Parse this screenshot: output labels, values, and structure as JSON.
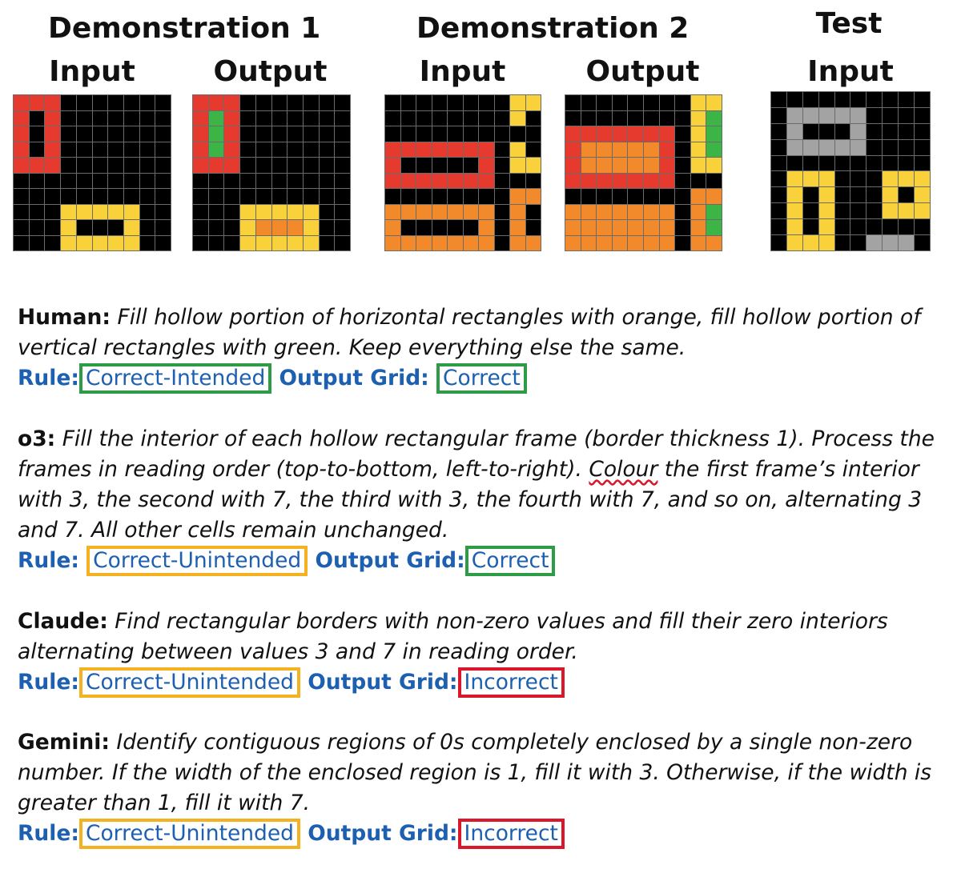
{
  "headers": {
    "demo1": "Demonstration 1",
    "demo2": "Demonstration 2",
    "test": "Test",
    "input": "Input",
    "output": "Output"
  },
  "colors": {
    "black": "#000000",
    "red": "#e63a2e",
    "yellow": "#f9d13b",
    "orange": "#f28a2b",
    "green": "#3cb446",
    "gray": "#a3a3a3",
    "gridline": "#6b6b6b",
    "label_blue": "#1d5fb0",
    "box_green": "#2e9c46",
    "box_orange": "#f4b223",
    "box_red": "#d9192b"
  },
  "grids": {
    "demo1_input": {
      "size": 10,
      "cells": [
        "RRR.......",
        "R.R.......",
        "R.R.......",
        "R.R.......",
        "RRR.......",
        "..........",
        "..........",
        "...YYYYY..",
        "...Y...Y..",
        "...YYYYY.."
      ]
    },
    "demo1_output": {
      "size": 10,
      "cells": [
        "RRR.......",
        "RGR.......",
        "RGR.......",
        "RGR.......",
        "RRR.......",
        "..........",
        "..........",
        "...YYYYY..",
        "...YOOOY..",
        "...YYYYY.."
      ]
    },
    "demo2_input": {
      "size": 10,
      "cells": [
        "........YY",
        "........Y.",
        ".......... ",
        "RRRRRRR.Y.",
        "R.....R.YY",
        "RRRRRRR...",
        "........OO",
        "OOOOOOO.O.",
        "O.....O.O.",
        "OOOOOOO.OO"
      ]
    },
    "demo2_output": {
      "size": 10,
      "cells": [
        "........YY",
        "........YG",
        "RRRRRRR.YG",
        "ROOOOOR.YG",
        "ROOOOOR.YY",
        "RRRRRRR...",
        "........OO",
        "OOOOOOO.OG",
        "OOOOOOO.OG",
        "OOOOOOO.OO"
      ]
    },
    "test_input": {
      "size": 10,
      "cells": [
        "..........",
        ".AAAAA....",
        ".A...A....",
        ".AAAAA....",
        "..........",
        ".YYY...YYY",
        ".Y.Y...Y.Y",
        ".Y.Y...YYY",
        ".Y.Y......",
        ".YYY..AAA."
      ]
    }
  },
  "entries": [
    {
      "who": "Human:",
      "desc": "Fill hollow portion of horizontal rectangles with orange, fill hollow portion of vertical rectangles with green. Keep everything else the same.",
      "rule_label": "Rule:",
      "rule_value": "Correct-Intended",
      "output_label": "Output Grid:",
      "output_value": "Correct"
    },
    {
      "who": "o3:",
      "desc_before": "Fill the interior of each hollow rectangular frame (border thickness 1). Process the frames in reading order (top-to-bottom, left-to-right).",
      "desc_spell": "Colour",
      "desc_after": "the first frame’s interior with 3, the second with 7, the third with 3, the fourth with 7, and so on, alternating 3 and 7. All other cells remain unchanged.",
      "rule_label": "Rule:",
      "rule_value": "Correct-Unintended",
      "output_label": "Output Grid:",
      "output_value": "Correct"
    },
    {
      "who": "Claude:",
      "desc": "Find rectangular borders with non-zero values and fill their zero interiors alternating between values 3 and 7 in reading order.",
      "rule_label": "Rule:",
      "rule_value": "Correct-Unintended",
      "output_label": "Output Grid:",
      "output_value": "Incorrect"
    },
    {
      "who": "Gemini:",
      "desc": "Identify contiguous regions of 0s completely enclosed by a single non-zero number. If the width of the enclosed region is 1, fill it with 3. Otherwise, if the width is greater than 1, fill it with 7.",
      "rule_label": "Rule:",
      "rule_value": "Correct-Unintended",
      "output_label": "Output Grid:",
      "output_value": "Incorrect"
    }
  ]
}
